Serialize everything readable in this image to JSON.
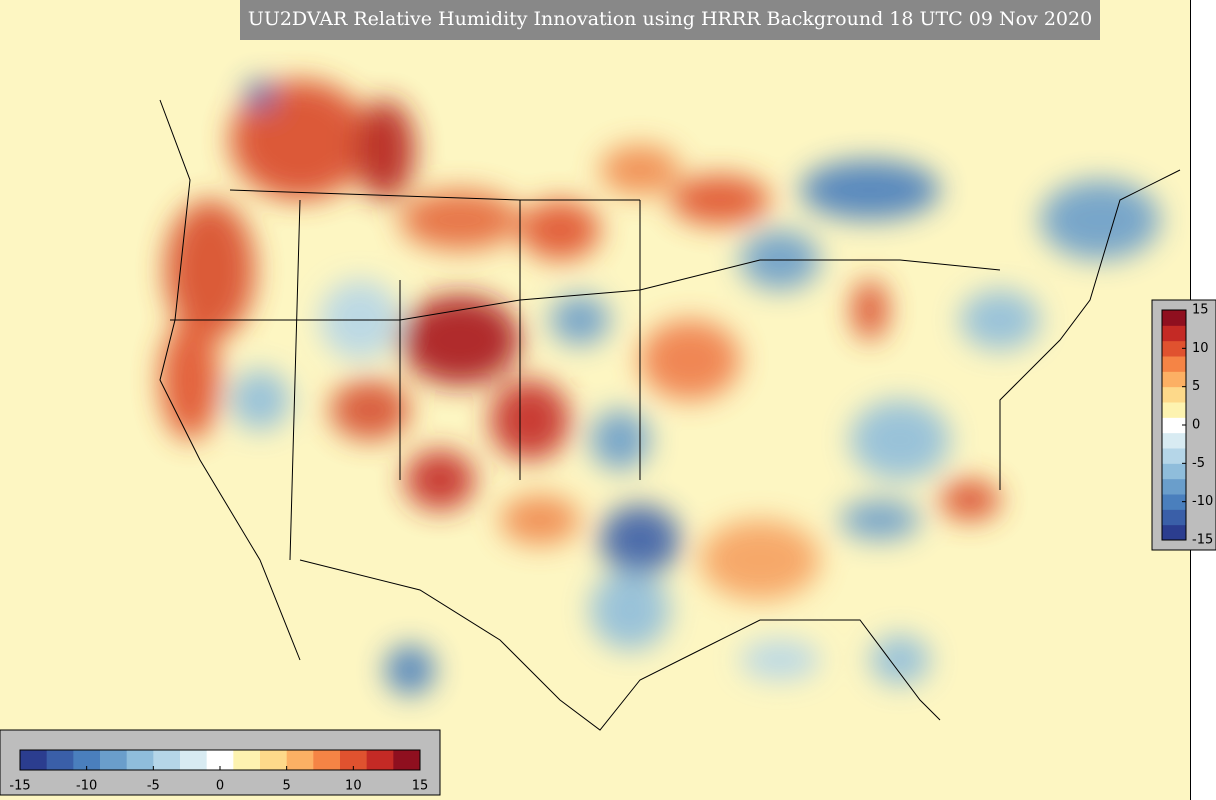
{
  "title": "UU2DVAR Relative Humidity Innovation using HRRR Background 18 UTC 09 Nov 2020",
  "colorbar": {
    "range": [
      -15,
      15
    ],
    "ticks": [
      -15,
      -10,
      -5,
      0,
      5,
      10,
      15
    ],
    "colors": [
      "#2b3d8f",
      "#3a5fa8",
      "#4a7fbd",
      "#6a9ecb",
      "#8fbddb",
      "#b5d6e8",
      "#d8ebf2",
      "#ffffff",
      "#fdf3b0",
      "#fdd98a",
      "#fcb064",
      "#f58445",
      "#e0522f",
      "#c42a25",
      "#8f0f1f"
    ]
  },
  "colorbar_right": {
    "range": [
      -15,
      15
    ],
    "ticks": [
      -15,
      -10,
      -5,
      0,
      5,
      10,
      15
    ]
  }
}
